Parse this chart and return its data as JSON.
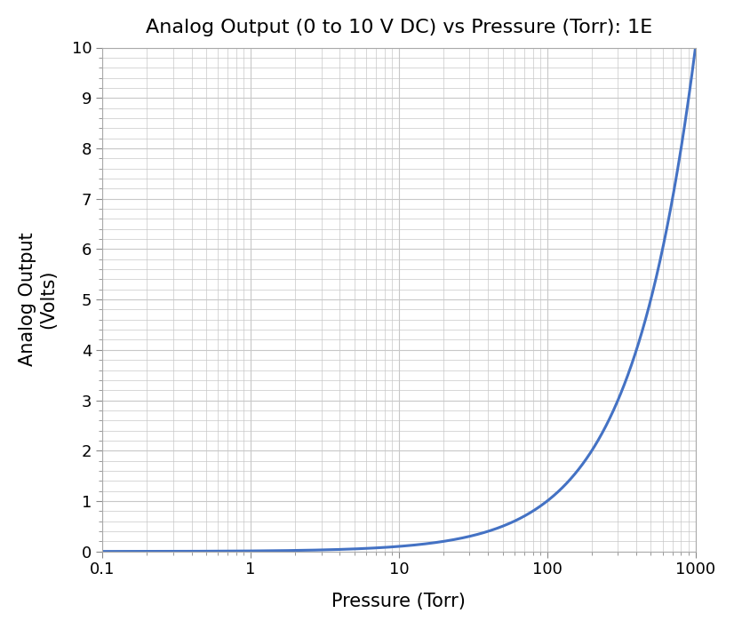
{
  "title": "Analog Output (0 to 10 V DC) vs Pressure (Torr): 1E",
  "xlabel": "Pressure (Torr)",
  "ylabel": "Analog Output\n(Volts)",
  "xlim": [
    0.1,
    1000
  ],
  "ylim": [
    0,
    10
  ],
  "yticks": [
    0,
    1,
    2,
    3,
    4,
    5,
    6,
    7,
    8,
    9,
    10
  ],
  "xtick_values": [
    0.1,
    1,
    10,
    100,
    1000
  ],
  "xtick_labels": [
    "0.1",
    "1",
    "10",
    "100",
    "1000"
  ],
  "line_color": "#4472C4",
  "line_width": 2.2,
  "background_color": "#ffffff",
  "grid_color": "#c8c8c8",
  "title_fontsize": 16,
  "axis_label_fontsize": 15,
  "tick_fontsize": 13,
  "pressure_min": 0.1,
  "pressure_max": 1000,
  "voltage_max": 10,
  "formula_exponent": 1.0
}
